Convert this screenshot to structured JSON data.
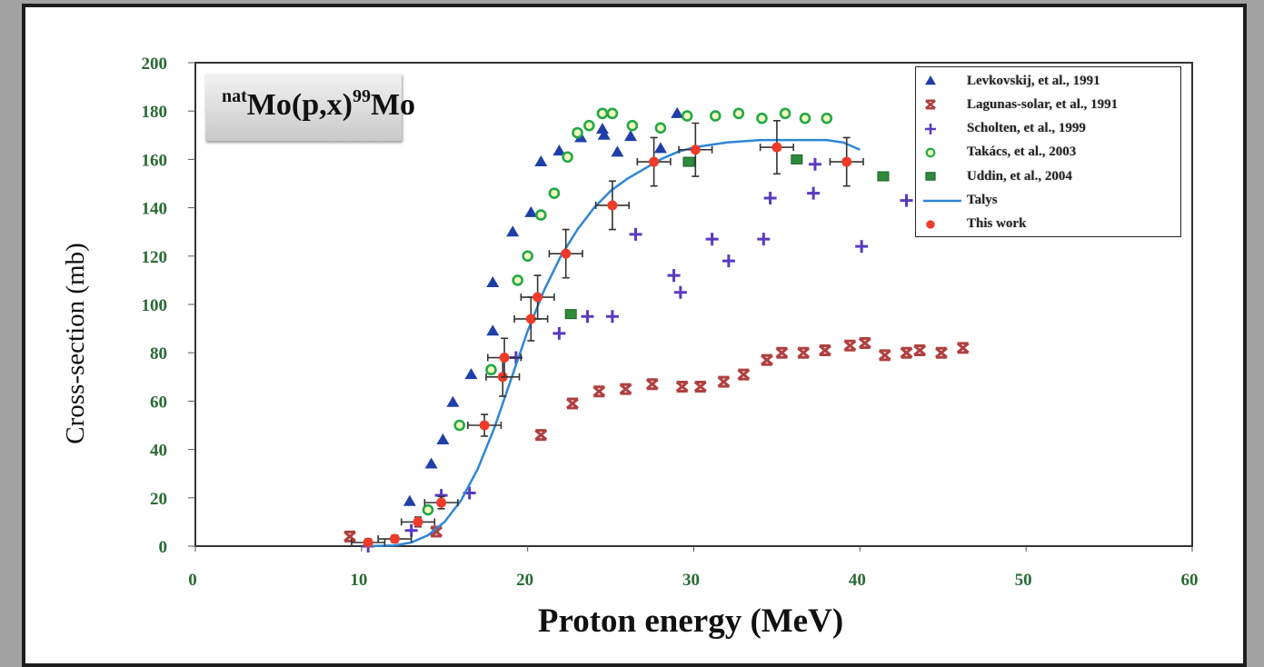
{
  "chart_data": {
    "type": "scatter",
    "title_parts": {
      "pre_sup": "nat",
      "mid": "Mo(p,x)",
      "sup": "99",
      "post": "Mo"
    },
    "xlabel": "Proton energy (MeV)",
    "ylabel": "Cross-section (mb)",
    "xlim": [
      0,
      60
    ],
    "ylim": [
      0,
      200
    ],
    "xticks": [
      "0",
      "10",
      "20",
      "30",
      "40",
      "50",
      "60"
    ],
    "yticks": [
      "0",
      "20",
      "40",
      "60",
      "80",
      "100",
      "120",
      "140",
      "160",
      "180",
      "200"
    ],
    "grid": false,
    "legend_position": "top-right",
    "series": [
      {
        "name": "Levkovskij, et al., 1991",
        "marker": "triangle",
        "color": "#1f3fa8",
        "points": [
          [
            12.9,
            18.5
          ],
          [
            14.2,
            34
          ],
          [
            14.9,
            44
          ],
          [
            15.5,
            59.5
          ],
          [
            16.6,
            71
          ],
          [
            17.9,
            89
          ],
          [
            17.9,
            109
          ],
          [
            19.1,
            130
          ],
          [
            20.2,
            138
          ],
          [
            20.8,
            159
          ],
          [
            21.9,
            163.5
          ],
          [
            23.2,
            169
          ],
          [
            24.5,
            172.5
          ],
          [
            24.6,
            170
          ],
          [
            25.4,
            163
          ],
          [
            26.2,
            169.5
          ],
          [
            28.0,
            164.5
          ],
          [
            29.0,
            179
          ]
        ]
      },
      {
        "name": "Lagunas-solar, et al., 1991",
        "marker": "x",
        "color": "#b04040",
        "points": [
          [
            9.3,
            4
          ],
          [
            14.5,
            6
          ],
          [
            20.8,
            46
          ],
          [
            22.7,
            59
          ],
          [
            24.3,
            64
          ],
          [
            25.9,
            65
          ],
          [
            27.5,
            67
          ],
          [
            29.3,
            66
          ],
          [
            30.4,
            66
          ],
          [
            31.8,
            68
          ],
          [
            33.0,
            71
          ],
          [
            34.4,
            77
          ],
          [
            35.3,
            80
          ],
          [
            36.6,
            80
          ],
          [
            37.9,
            81
          ],
          [
            39.4,
            83
          ],
          [
            40.3,
            84
          ],
          [
            41.5,
            79
          ],
          [
            42.8,
            80
          ],
          [
            43.6,
            81
          ],
          [
            44.9,
            80
          ],
          [
            46.2,
            82
          ]
        ]
      },
      {
        "name": "Scholten, et al., 1999",
        "marker": "plus",
        "color": "#5a3ac0",
        "points": [
          [
            10.4,
            0
          ],
          [
            13.0,
            6.5
          ],
          [
            14.8,
            21
          ],
          [
            16.5,
            22
          ],
          [
            19.3,
            78
          ],
          [
            21.9,
            88
          ],
          [
            23.6,
            95
          ],
          [
            25.1,
            95
          ],
          [
            26.5,
            129
          ],
          [
            28.8,
            112
          ],
          [
            29.2,
            105
          ],
          [
            31.1,
            127
          ],
          [
            32.1,
            118
          ],
          [
            34.2,
            127
          ],
          [
            34.6,
            144
          ],
          [
            37.2,
            146
          ],
          [
            37.3,
            158
          ],
          [
            40.1,
            124
          ],
          [
            42.8,
            143
          ]
        ]
      },
      {
        "name": "Takács, et al., 2003",
        "marker": "circle",
        "color": "#22a845",
        "points": [
          [
            14.0,
            15
          ],
          [
            15.9,
            50
          ],
          [
            17.8,
            73
          ],
          [
            19.4,
            110
          ],
          [
            20.0,
            120
          ],
          [
            20.8,
            137
          ],
          [
            21.6,
            146
          ],
          [
            22.4,
            161
          ],
          [
            23.0,
            171
          ],
          [
            23.7,
            174
          ],
          [
            24.5,
            179
          ],
          [
            25.1,
            179
          ],
          [
            26.3,
            174
          ],
          [
            28.0,
            173
          ],
          [
            29.6,
            178
          ],
          [
            31.3,
            178
          ],
          [
            32.7,
            179
          ],
          [
            34.1,
            177
          ],
          [
            35.5,
            179
          ],
          [
            36.7,
            177
          ],
          [
            38.0,
            177
          ]
        ]
      },
      {
        "name": "Uddin, et al., 2004",
        "marker": "square",
        "color": "#2e8b3a",
        "points": [
          [
            22.6,
            96
          ],
          [
            29.7,
            159
          ],
          [
            36.2,
            160
          ],
          [
            41.4,
            153
          ]
        ]
      },
      {
        "name": "Talys",
        "marker": "line",
        "color": "#2f86d6",
        "points": [
          [
            10.3,
            0
          ],
          [
            12,
            0.3
          ],
          [
            13,
            1.5
          ],
          [
            14,
            4.5
          ],
          [
            15,
            10
          ],
          [
            16,
            19
          ],
          [
            17,
            32
          ],
          [
            18,
            49
          ],
          [
            19,
            69
          ],
          [
            20,
            89
          ],
          [
            21,
            106
          ],
          [
            22,
            120
          ],
          [
            23,
            131
          ],
          [
            24,
            140
          ],
          [
            25,
            147
          ],
          [
            26,
            152
          ],
          [
            27,
            156
          ],
          [
            28,
            160
          ],
          [
            29,
            163
          ],
          [
            30,
            165
          ],
          [
            32,
            167
          ],
          [
            34,
            168
          ],
          [
            36,
            168
          ],
          [
            38,
            168
          ],
          [
            39,
            167
          ],
          [
            40,
            164
          ]
        ]
      },
      {
        "name": "This work",
        "marker": "dot-errorbar",
        "color": "#ee3b2a",
        "points": [
          [
            10.4,
            1.5,
            1,
            1.5
          ],
          [
            12.0,
            3,
            1,
            1.5
          ],
          [
            13.4,
            10,
            1,
            2
          ],
          [
            14.8,
            18,
            1,
            2.5
          ],
          [
            17.4,
            50,
            1,
            4.5
          ],
          [
            18.5,
            70,
            1,
            8
          ],
          [
            18.6,
            78,
            1,
            8
          ],
          [
            20.2,
            94,
            1,
            9
          ],
          [
            20.6,
            103,
            1,
            9
          ],
          [
            22.3,
            121,
            1,
            10
          ],
          [
            25.1,
            141,
            1,
            10
          ],
          [
            27.6,
            159,
            1,
            10
          ],
          [
            30.1,
            164,
            1,
            11
          ],
          [
            35.0,
            165,
            1,
            11
          ],
          [
            39.2,
            159,
            1,
            10
          ]
        ]
      }
    ]
  }
}
